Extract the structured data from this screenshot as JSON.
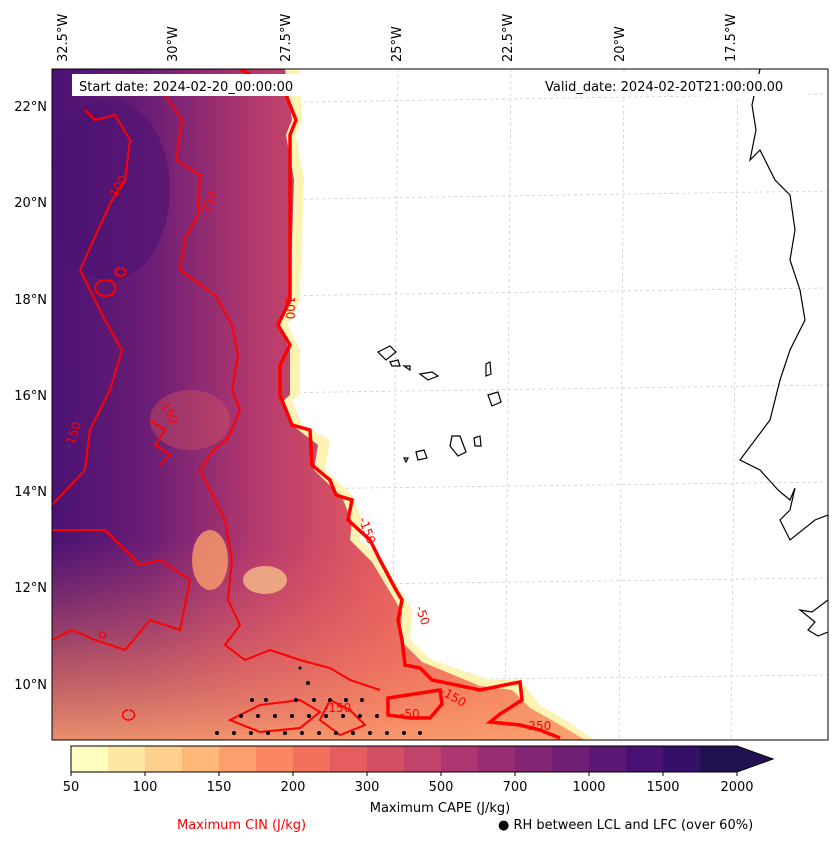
{
  "map": {
    "start_date": "Start date: 2024-02-20_00:00:00",
    "valid_date": "Valid_date: 2024-02-20T21:00:00.00",
    "lon_labels": [
      "32.5°W",
      "30°W",
      "27.5°W",
      "25°W",
      "22.5°W",
      "20°W",
      "17.5°W"
    ],
    "lat_labels": [
      "22°N",
      "20°N",
      "18°N",
      "16°N",
      "14°N",
      "12°N",
      "10°N"
    ],
    "cin_contour_labels": [
      "-100",
      "-250",
      "-100",
      "-150",
      "-150",
      "-150",
      "-50",
      "-150",
      "-150",
      "-50",
      "-250"
    ]
  },
  "colorbar": {
    "ticks": [
      "50",
      "100",
      "150",
      "200",
      "300",
      "500",
      "700",
      "1000",
      "1500",
      "2000"
    ],
    "label": "Maximum CAPE (J/kg)",
    "colors": [
      "#fcfdbf",
      "#fee7a5",
      "#fed08e",
      "#feb87a",
      "#fd9f6c",
      "#fa8662",
      "#f3705c",
      "#e65d5f",
      "#d44e65",
      "#c1426b",
      "#ad3670",
      "#982d73",
      "#842574",
      "#711f75",
      "#5d1775",
      "#481173",
      "#341068",
      "#221150"
    ]
  },
  "legend": {
    "cin_label": "Maximum CIN (J/kg)",
    "rh_label": "● RH between LCL and LFC (over 60%)",
    "cin_color": "#ff0000"
  }
}
